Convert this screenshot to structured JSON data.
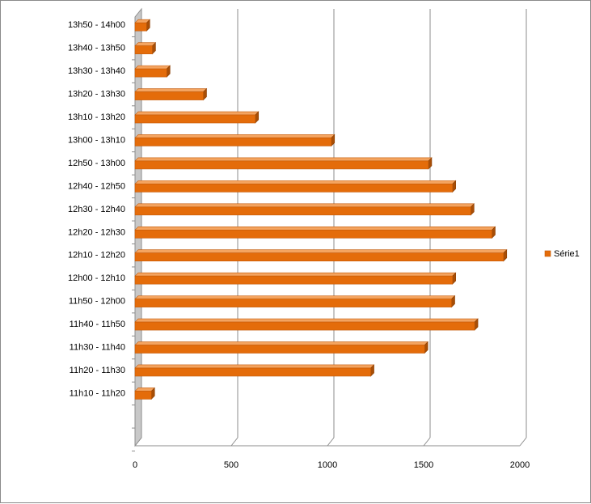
{
  "chart_data": {
    "type": "bar",
    "orientation": "horizontal",
    "style": "3d",
    "title": "",
    "xlabel": "",
    "ylabel": "",
    "categories": [
      "",
      "",
      "11h10 - 11h20",
      "11h20 - 11h30",
      "11h30 - 11h40",
      "11h40 - 11h50",
      "11h50 - 12h00",
      "12h00 - 12h10",
      "12h10 - 12h20",
      "12h20 - 12h30",
      "12h30 - 12h40",
      "12h40 - 12h50",
      "12h50 - 13h00",
      "13h00 - 13h10",
      "13h10 - 13h20",
      "13h20 - 13h30",
      "13h30 - 13h40",
      "13h40 - 13h50",
      "13h50 - 14h00"
    ],
    "series": [
      {
        "name": "Série1",
        "color": "#E46C0A",
        "values": [
          null,
          null,
          85,
          1225,
          1505,
          1765,
          1645,
          1650,
          1915,
          1855,
          1745,
          1650,
          1525,
          1020,
          625,
          355,
          165,
          90,
          60
        ]
      }
    ],
    "xlim": [
      0,
      2000
    ],
    "xticks": [
      0,
      500,
      1000,
      1500,
      2000
    ],
    "grid": "vertical",
    "legend": "right"
  }
}
